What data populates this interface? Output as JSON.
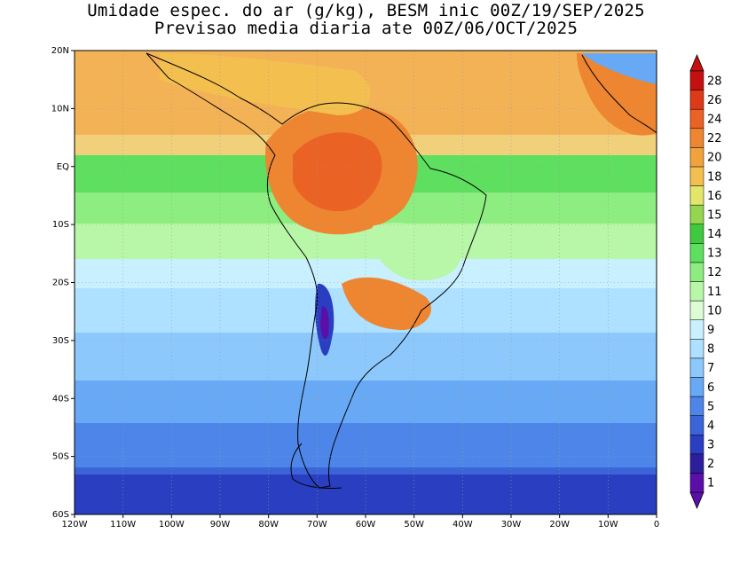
{
  "title_line1": "Umidade espec. do ar (g/kg), BESM inic 00Z/19/SEP/2025",
  "title_line2": "Previsao media diaria ate 00Z/06/OCT/2025",
  "map": {
    "lon_range": [
      -120,
      0
    ],
    "lat_range": [
      -60,
      20
    ],
    "x_ticks": [
      "120W",
      "110W",
      "100W",
      "90W",
      "80W",
      "70W",
      "60W",
      "50W",
      "40W",
      "30W",
      "20W",
      "10W",
      "0"
    ],
    "y_ticks": [
      "20N",
      "10N",
      "EQ",
      "10S",
      "20S",
      "30S",
      "40S",
      "50S",
      "60S"
    ],
    "grid": "dotted",
    "projection": "lat-lon"
  },
  "colorbar": {
    "labels": [
      "1",
      "2",
      "3",
      "4",
      "5",
      "6",
      "7",
      "8",
      "9",
      "10",
      "11",
      "12",
      "13",
      "14",
      "15",
      "16",
      "18",
      "20",
      "22",
      "24",
      "26",
      "28"
    ],
    "colors": [
      "#5b0fa8",
      "#2d1e9c",
      "#2a3ec1",
      "#3a64d8",
      "#4d86e8",
      "#67a9f5",
      "#8cc8fb",
      "#aee0ff",
      "#c9f0ff",
      "#dcfcd4",
      "#b8f7a8",
      "#8ded80",
      "#5fdf5f",
      "#3ec93e",
      "#94d650",
      "#e3e66a",
      "#f3c050",
      "#f0a23f",
      "#ee8530",
      "#ea6224",
      "#dd3a18",
      "#c41010"
    ],
    "extend": "both"
  },
  "bands": {
    "north_atlantic": "#f3b256",
    "equatorial": "#f0d07a",
    "itcz_green": "#5fdf5f",
    "tropical_green": "#8ded80",
    "subtropical": "#c9f0ff",
    "midlat": "#8cc8fb",
    "south": "#4d86e8",
    "far_south": "#3a64d8",
    "amazon": "#ee8530",
    "andes": "#5b0fa8"
  }
}
